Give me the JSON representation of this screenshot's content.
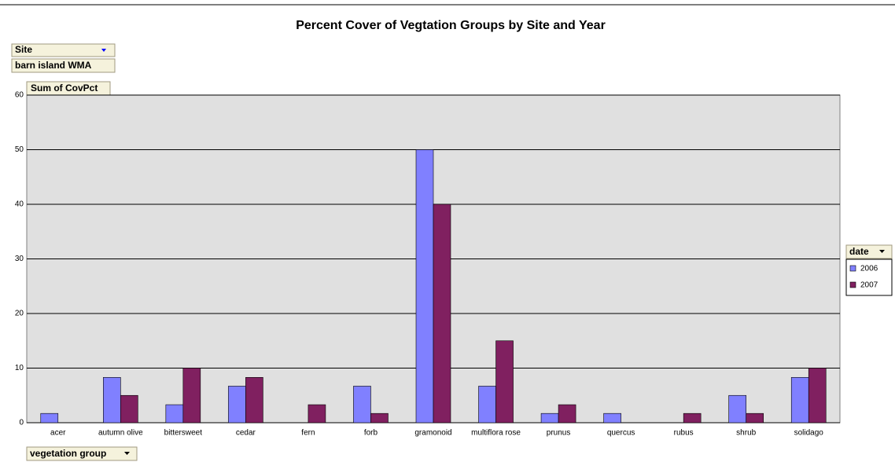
{
  "chart_data": {
    "type": "bar",
    "title": "Percent Cover of Vegtation Groups by Site and Year",
    "page_field": "Site",
    "page_value": "barn island WMA",
    "data_field": "Sum of CovPct",
    "legend_title": "date",
    "category_field": "vegetation group",
    "categories": [
      "acer",
      "autumn olive",
      "bittersweet",
      "cedar",
      "fern",
      "forb",
      "gramonoid",
      "multiflora rose",
      "prunus",
      "quercus",
      "rubus",
      "shrub",
      "solidago"
    ],
    "series": [
      {
        "name": "2006",
        "color": "#8080ff",
        "values": [
          1.7,
          8.3,
          3.3,
          6.7,
          0,
          6.7,
          50,
          6.7,
          1.7,
          1.7,
          0,
          5,
          8.3
        ]
      },
      {
        "name": "2007",
        "color": "#802060",
        "values": [
          0,
          5,
          10,
          8.3,
          3.3,
          1.7,
          40,
          15,
          3.3,
          0,
          1.7,
          1.7,
          10
        ]
      }
    ],
    "ylim": [
      0,
      60
    ],
    "yticks": [
      0,
      10,
      20,
      30,
      40,
      50,
      60
    ],
    "grid": true,
    "legend": "right"
  }
}
